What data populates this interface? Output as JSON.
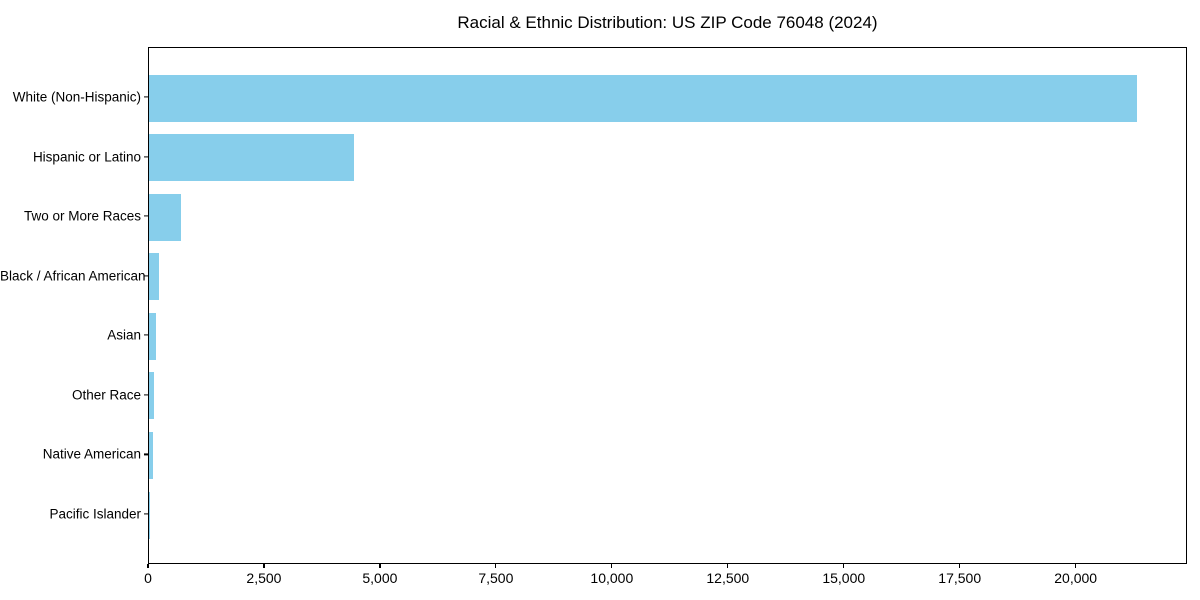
{
  "title": "Racial & Ethnic Distribution: US ZIP Code 76048 (2024)",
  "chart_data": {
    "type": "bar",
    "orientation": "horizontal",
    "title": "Racial & Ethnic Distribution: US ZIP Code 76048 (2024)",
    "categories": [
      "White (Non-Hispanic)",
      "Hispanic or Latino",
      "Two or More Races",
      "Black / African American",
      "Asian",
      "Other Race",
      "Native American",
      "Pacific Islander"
    ],
    "values": [
      21290,
      4425,
      690,
      210,
      150,
      110,
      90,
      25
    ],
    "bar_color": "#87CEEB",
    "xlabel": "",
    "ylabel": "",
    "xlim": [
      0,
      22400
    ],
    "x_ticks": [
      0,
      2500,
      5000,
      7500,
      10000,
      12500,
      15000,
      17500,
      20000
    ],
    "x_tick_labels": [
      "0",
      "2,500",
      "5,000",
      "7,500",
      "10,000",
      "12,500",
      "15,000",
      "17,500",
      "20,000"
    ],
    "grid": false,
    "legend": "none",
    "background": "#ffffff",
    "spine_color": "#000000"
  }
}
